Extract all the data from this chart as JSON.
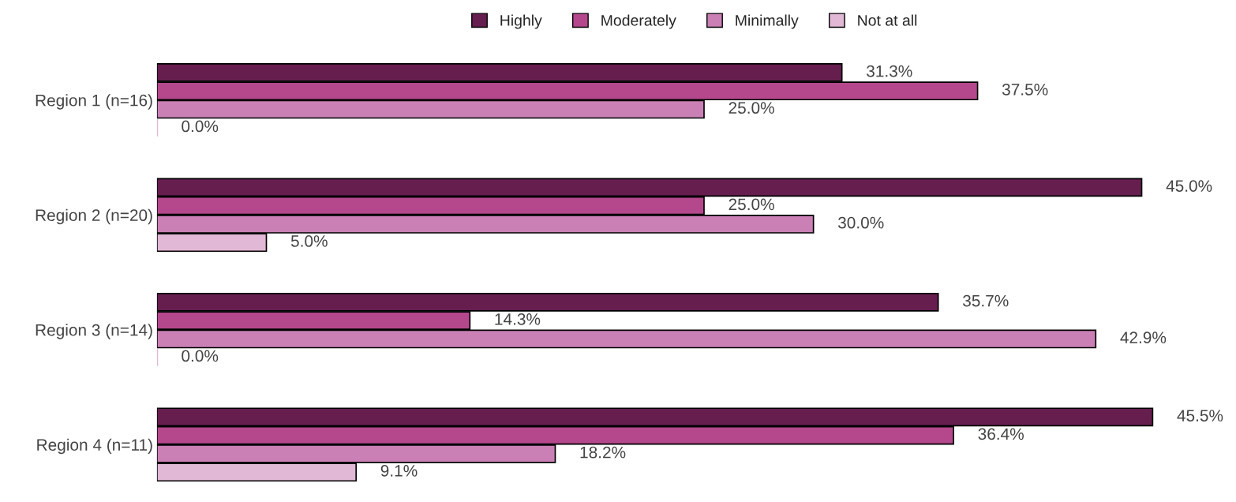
{
  "chart_data": {
    "type": "bar",
    "orientation": "horizontal",
    "legend": "top",
    "grid": false,
    "tick_labels": "y",
    "categories": [
      "Region 1 (n=16)",
      "Region 2 (n=20)",
      "Region 3 (n=14)",
      "Region 4 (n=11)"
    ],
    "series": [
      {
        "name": "Highly",
        "color": "#661e4f",
        "values": [
          31.3,
          45.0,
          35.7,
          45.5
        ],
        "value_labels": [
          "31.3%",
          "45.0%",
          "35.7%",
          "45.5%"
        ]
      },
      {
        "name": "Moderately",
        "color": "#b5488d",
        "values": [
          37.5,
          25.0,
          14.3,
          36.4
        ],
        "value_labels": [
          "37.5%",
          "25.0%",
          "14.3%",
          "36.4%"
        ]
      },
      {
        "name": "Minimally",
        "color": "#ca80b5",
        "values": [
          25.0,
          30.0,
          42.9,
          18.2
        ],
        "value_labels": [
          "25.0%",
          "30.0%",
          "42.9%",
          "18.2%"
        ]
      },
      {
        "name": "Not at all",
        "color": "#e1b8d5",
        "values": [
          0.0,
          5.0,
          0.0,
          9.1
        ],
        "value_labels": [
          "0.0%",
          "5.0%",
          "0.0%",
          "9.1%"
        ]
      }
    ]
  }
}
